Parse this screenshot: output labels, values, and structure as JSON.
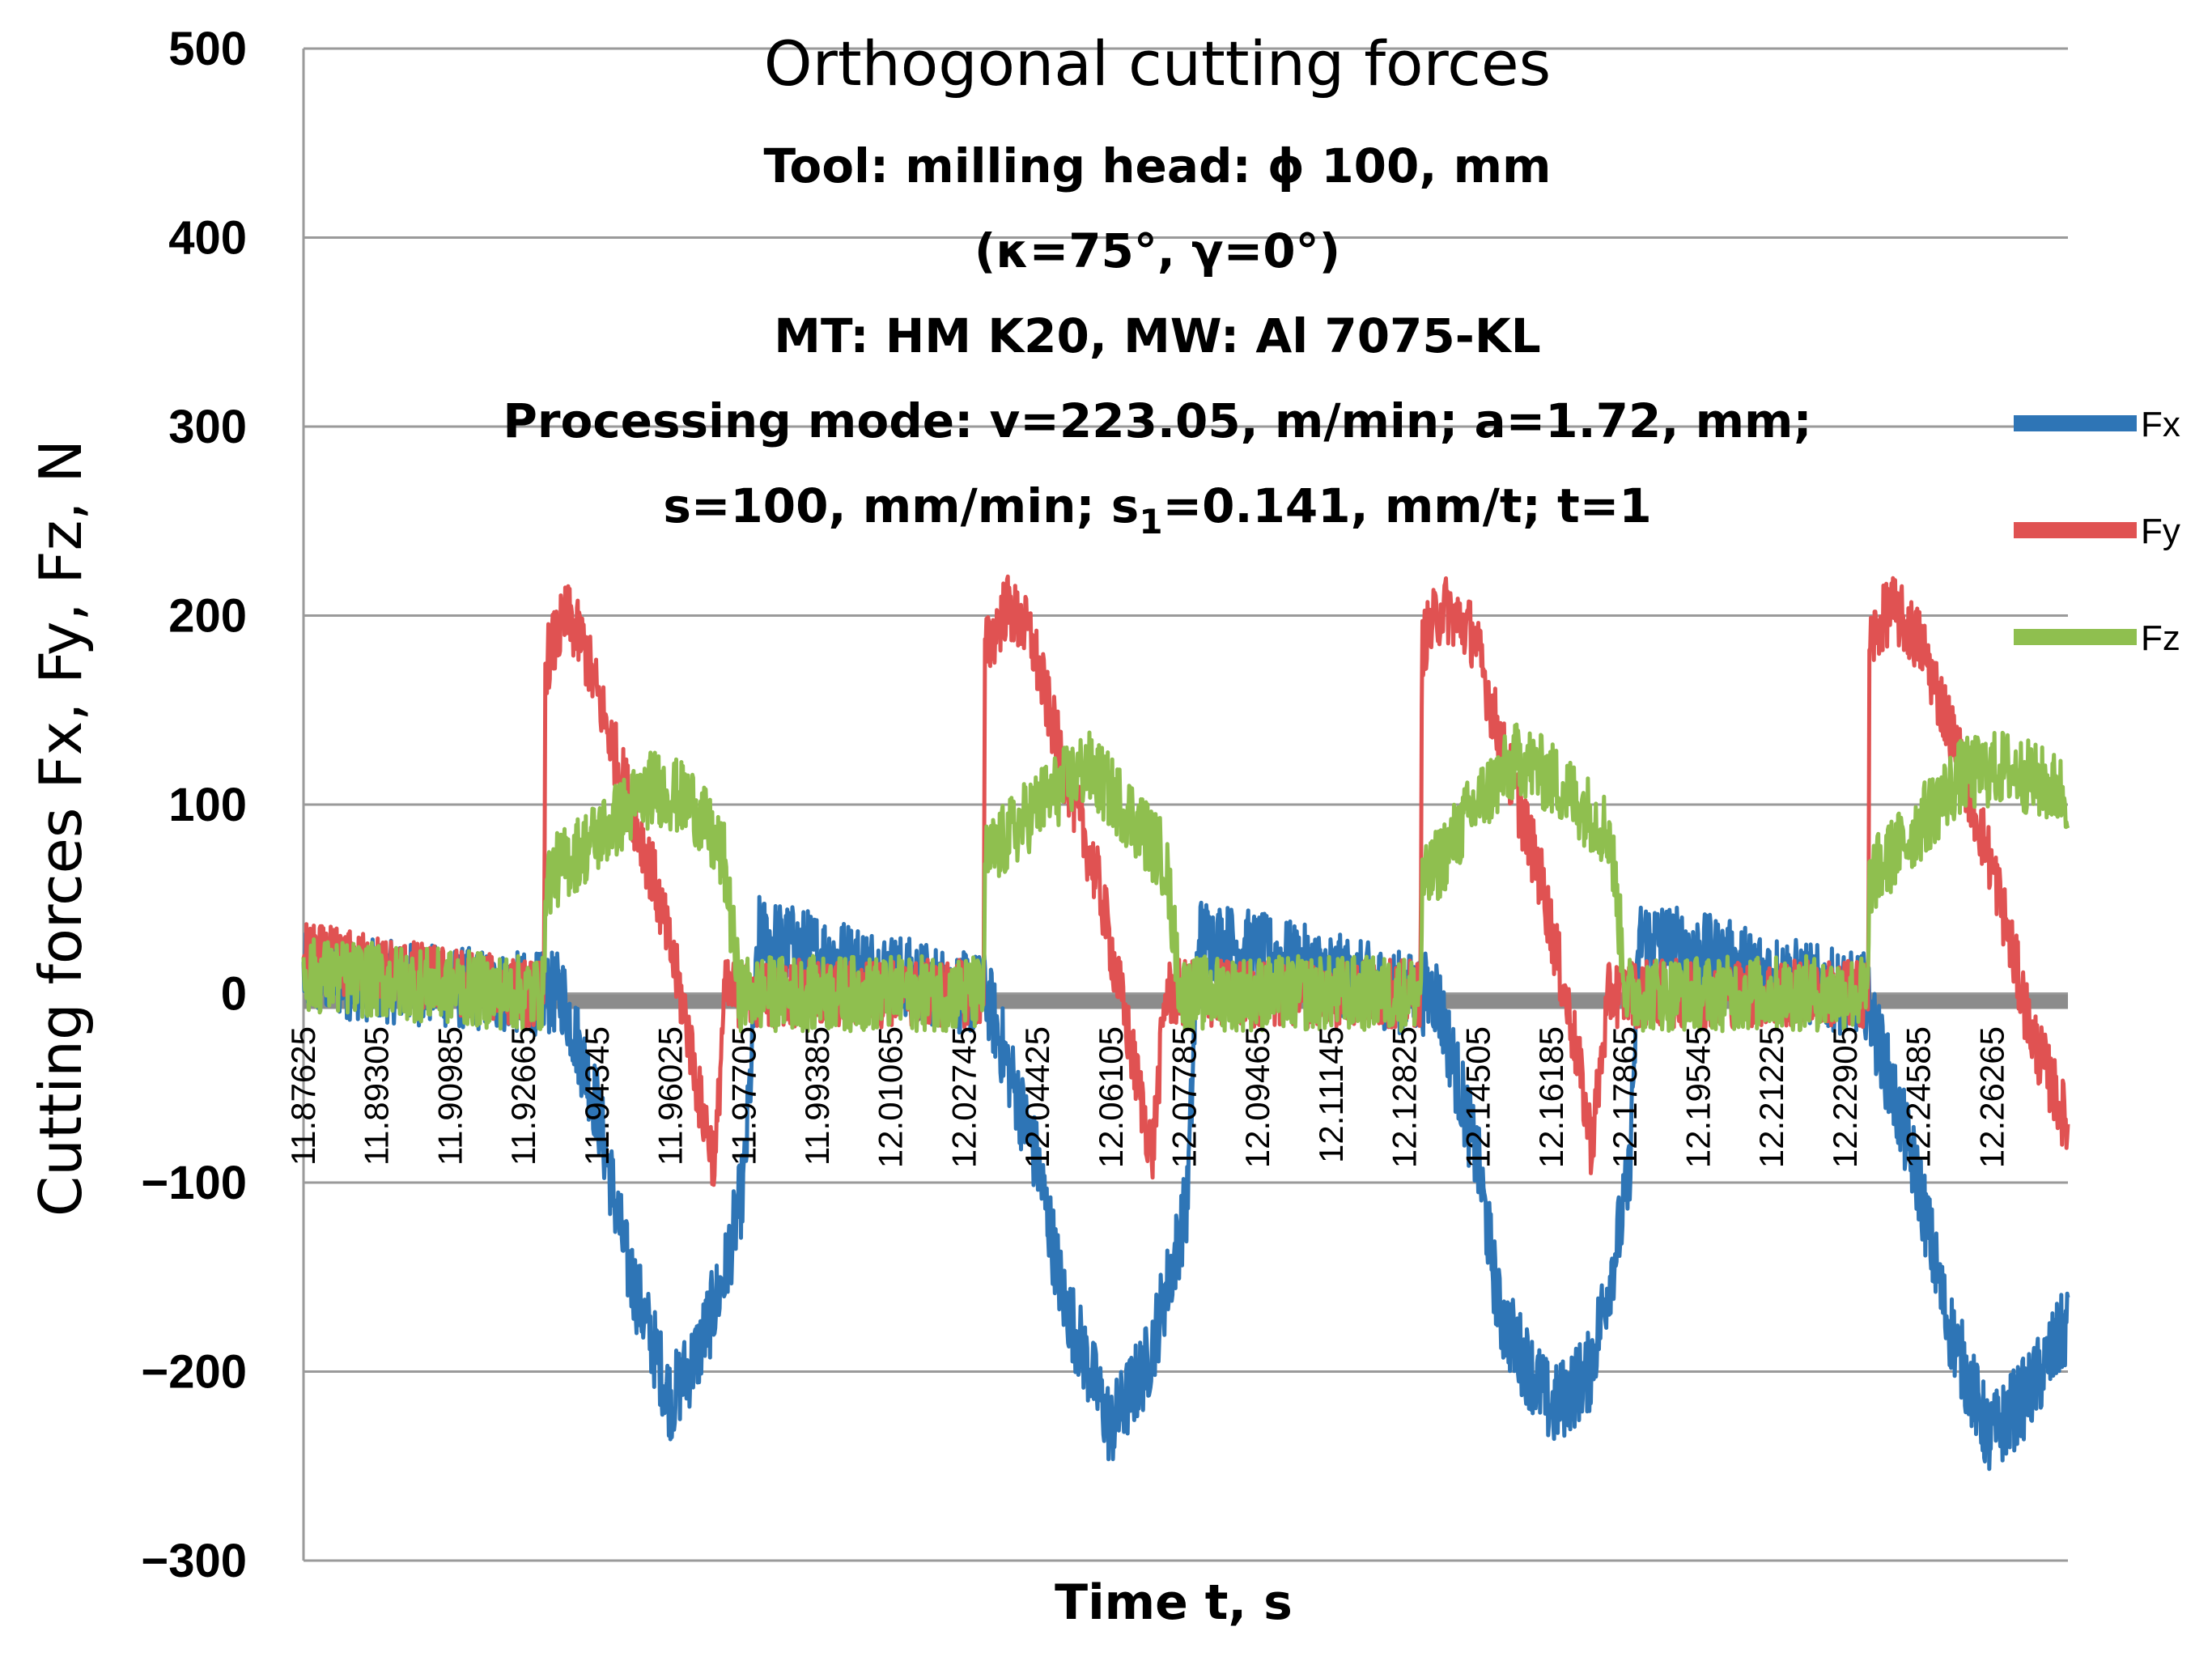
{
  "chart_data": {
    "type": "line",
    "title": "Orthogonal  cutting forces",
    "subtitle_lines": [
      "Tool: milling head: ϕ 100, mm",
      "(κ=75°, γ=0°)",
      "MT: HM K20, MW: Al 7075-KL",
      "Processing mode: v=223.05, m/min; a=1.72, mm;",
      "s=100, mm/min; s₁=0.141, mm/t; t=1"
    ],
    "subtitle_last_parts": [
      "s=100, mm/min; s",
      "1",
      "=0.141, mm/t; t=1"
    ],
    "ylabel": "Cutting forces   Fx, Fy, Fz, N",
    "xlabel": "Time t, s",
    "ylim": [
      -300,
      500
    ],
    "yticks": [
      "500",
      "400",
      "300",
      "200",
      "100",
      "0",
      "−100",
      "−200",
      "−300"
    ],
    "ytick_values": [
      500,
      400,
      300,
      200,
      100,
      0,
      -100,
      -200,
      -300
    ],
    "xlim": [
      11.87625,
      12.28
    ],
    "xticks": [
      "11.87625",
      "11.89305",
      "11.90985",
      "11.92665",
      "11.94345",
      "11.96025",
      "11.97705",
      "11.99385",
      "12.01065",
      "12.02745",
      "12.04425",
      "12.06105",
      "12.07785",
      "12.09465",
      "12.11145",
      "12.12825",
      "12.14505",
      "12.16185",
      "12.17865",
      "12.19545",
      "12.21225",
      "12.22905",
      "12.24585",
      "12.26265"
    ],
    "xtick_values": [
      11.87625,
      11.89305,
      11.90985,
      11.92665,
      11.94345,
      11.96025,
      11.97705,
      11.99385,
      12.01065,
      12.02745,
      12.04425,
      12.06105,
      12.07785,
      12.09465,
      12.11145,
      12.12825,
      12.14505,
      12.16185,
      12.17865,
      12.19545,
      12.21225,
      12.22905,
      12.24585,
      12.26265
    ],
    "grid": true,
    "legend_position": "right",
    "series": [
      {
        "name": "Fx",
        "color": "#2e75b6",
        "x": [
          11.87625,
          11.92665,
          11.9355,
          11.94345,
          11.95,
          11.96025,
          11.9665,
          11.9725,
          11.97705,
          11.9805,
          12.02745,
          12.0325,
          12.04425,
          12.05,
          12.061,
          12.0695,
          12.0755,
          12.0785,
          12.081,
          12.12825,
          12.1355,
          12.14505,
          12.15,
          12.162,
          12.1705,
          12.177,
          12.1795,
          12.182,
          12.22905,
          12.2335,
          12.24585,
          12.252,
          12.262,
          12.2715,
          12.28
        ],
        "values": [
          10,
          0,
          0,
          -60,
          -140,
          -215,
          -190,
          -150,
          -100,
          30,
          0,
          0,
          -90,
          -160,
          -230,
          -195,
          -140,
          -110,
          30,
          0,
          0,
          -90,
          -170,
          -220,
          -200,
          -130,
          -100,
          30,
          0,
          0,
          -100,
          -170,
          -235,
          -210,
          -175
        ],
        "noise": 22
      },
      {
        "name": "Fy",
        "color": "#e05252",
        "x": [
          11.87625,
          11.92665,
          11.9313,
          11.9316,
          11.9365,
          11.9402,
          11.9465,
          11.9565,
          11.9635,
          11.9668,
          11.9705,
          11.9725,
          12.0319,
          12.0322,
          12.037,
          12.0425,
          12.049,
          12.0585,
          12.0665,
          12.0705,
          12.0735,
          12.1319,
          12.1322,
          12.137,
          12.144,
          12.1505,
          12.1595,
          12.1675,
          12.171,
          12.175,
          12.2343,
          12.2346,
          12.2395,
          12.2465,
          12.2538,
          12.2635,
          12.2715,
          12.28
        ],
        "values": [
          20,
          0,
          0,
          175,
          200,
          185,
          135,
          60,
          -10,
          -55,
          -90,
          0,
          0,
          180,
          205,
          190,
          130,
          55,
          -40,
          -85,
          0,
          0,
          185,
          205,
          190,
          130,
          60,
          -30,
          -80,
          0,
          0,
          185,
          205,
          185,
          135,
          60,
          -20,
          -70
        ],
        "noise": 18
      },
      {
        "name": "Fz",
        "color": "#8fbf4f",
        "x": [
          11.87625,
          11.92665,
          11.9313,
          11.9316,
          11.9445,
          11.9565,
          11.9655,
          11.9725,
          11.976,
          12.0319,
          12.0322,
          12.0445,
          12.0555,
          12.0655,
          12.0735,
          12.077,
          12.1319,
          12.1322,
          12.1445,
          12.1545,
          12.164,
          12.1752,
          12.179,
          12.2343,
          12.2346,
          12.2445,
          12.2555,
          12.2655,
          12.28
        ],
        "values": [
          10,
          0,
          0,
          60,
          85,
          110,
          100,
          70,
          0,
          0,
          70,
          100,
          120,
          95,
          70,
          0,
          0,
          55,
          100,
          125,
          110,
          85,
          0,
          0,
          60,
          85,
          115,
          120,
          105
        ],
        "noise": 20
      }
    ]
  }
}
